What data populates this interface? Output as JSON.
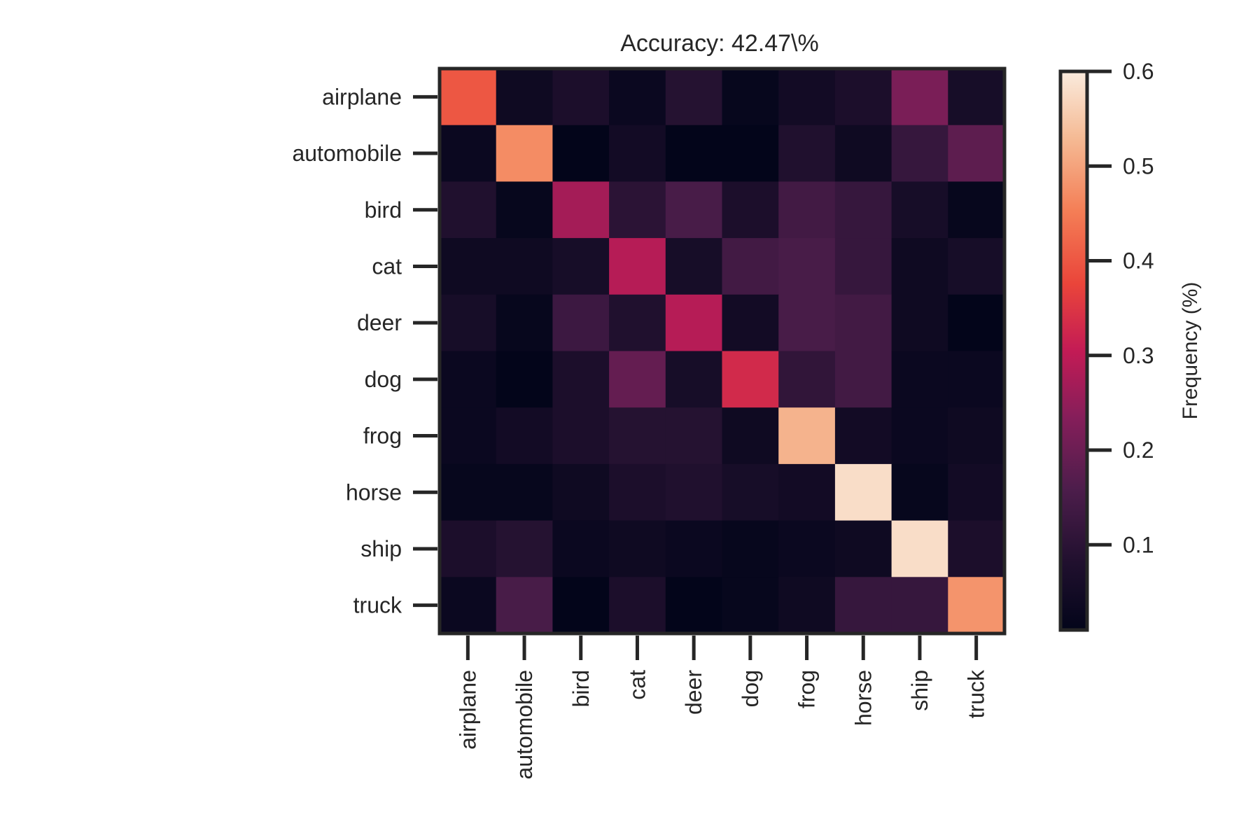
{
  "chart_data": {
    "type": "heatmap",
    "title": "Accuracy: 42.47\\%",
    "xlabel": "",
    "ylabel": "",
    "rows": [
      "airplane",
      "automobile",
      "bird",
      "cat",
      "deer",
      "dog",
      "frog",
      "horse",
      "ship",
      "truck"
    ],
    "columns": [
      "airplane",
      "automobile",
      "bird",
      "cat",
      "deer",
      "dog",
      "frog",
      "horse",
      "ship",
      "truck"
    ],
    "values": [
      [
        0.4,
        0.04,
        0.07,
        0.03,
        0.09,
        0.02,
        0.05,
        0.07,
        0.22,
        0.06
      ],
      [
        0.03,
        0.47,
        0.01,
        0.05,
        0.01,
        0.01,
        0.08,
        0.04,
        0.12,
        0.18
      ],
      [
        0.08,
        0.02,
        0.27,
        0.1,
        0.15,
        0.07,
        0.14,
        0.12,
        0.06,
        0.02
      ],
      [
        0.04,
        0.04,
        0.06,
        0.29,
        0.06,
        0.14,
        0.15,
        0.12,
        0.04,
        0.06
      ],
      [
        0.06,
        0.02,
        0.13,
        0.08,
        0.29,
        0.05,
        0.15,
        0.14,
        0.04,
        0.01
      ],
      [
        0.03,
        0.01,
        0.07,
        0.19,
        0.06,
        0.33,
        0.11,
        0.14,
        0.03,
        0.03
      ],
      [
        0.03,
        0.05,
        0.07,
        0.09,
        0.09,
        0.04,
        0.52,
        0.05,
        0.03,
        0.04
      ],
      [
        0.02,
        0.02,
        0.04,
        0.07,
        0.08,
        0.06,
        0.05,
        0.58,
        0.02,
        0.05
      ],
      [
        0.07,
        0.09,
        0.03,
        0.04,
        0.03,
        0.02,
        0.03,
        0.04,
        0.58,
        0.07
      ],
      [
        0.03,
        0.15,
        0.01,
        0.07,
        0.01,
        0.02,
        0.04,
        0.12,
        0.12,
        0.48
      ]
    ],
    "colorbar": {
      "label": "Frequency (%)",
      "colormap": "rocket",
      "range": [
        0.01,
        0.6
      ],
      "ticks": [
        0.1,
        0.2,
        0.3,
        0.4,
        0.5,
        0.6
      ],
      "tick_labels": [
        "0.1",
        "0.2",
        "0.3",
        "0.4",
        "0.5",
        "0.6"
      ]
    },
    "grid": false
  },
  "colors": {
    "frame": "#262626",
    "text": "#262626",
    "background": "#ffffff"
  }
}
